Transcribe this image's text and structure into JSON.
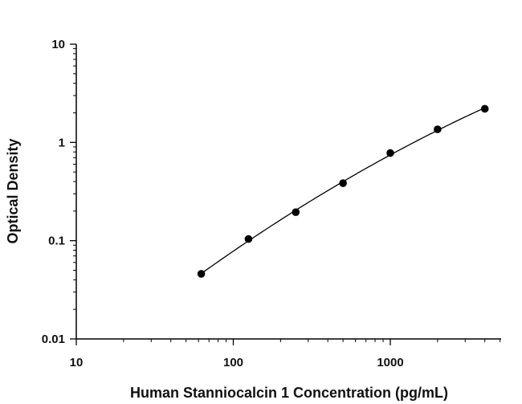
{
  "chart_data": {
    "type": "scatter",
    "title": "",
    "xlabel": "Human  Stanniocalcin 1 Concentration (pg/mL)",
    "ylabel": "Optical Density",
    "x_scale": "log",
    "y_scale": "log",
    "xlim": [
      10,
      5000
    ],
    "ylim": [
      0.01,
      10
    ],
    "x_ticks": [
      10,
      100,
      1000
    ],
    "x_tick_labels": [
      "10",
      "100",
      "1000"
    ],
    "y_ticks": [
      0.01,
      0.1,
      1,
      10
    ],
    "y_tick_labels": [
      "0.01",
      "0.1",
      "1",
      "10"
    ],
    "grid": false,
    "legend": "none",
    "fit_line": true,
    "colors": {
      "points": "#000000",
      "line": "#000000",
      "axis": "#000000"
    },
    "series": [
      {
        "x": [
          62.5,
          125,
          250,
          500,
          1000,
          2000,
          4000
        ],
        "y": [
          0.046,
          0.104,
          0.195,
          0.385,
          0.78,
          1.36,
          2.2
        ]
      }
    ]
  }
}
